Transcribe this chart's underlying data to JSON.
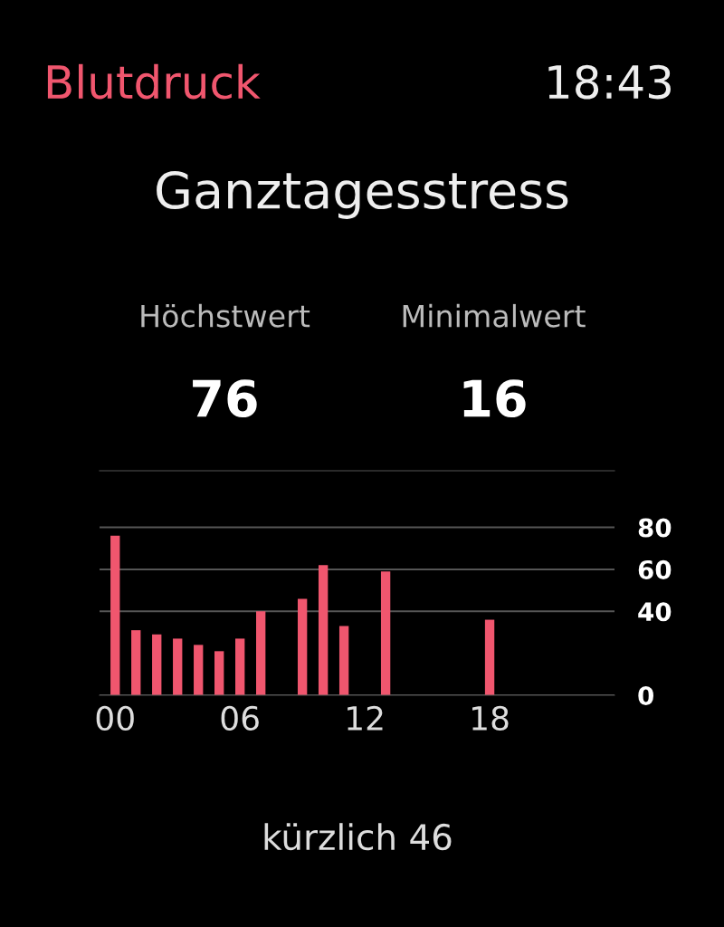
{
  "chart_data": {
    "type": "bar",
    "title": "Ganztagesstress",
    "annotations": [
      "Blutdruck",
      "18:43",
      "Höchstwert",
      "Minimalwert",
      "76",
      "16",
      "kürzlich 46"
    ],
    "x": [
      0,
      1,
      2,
      3,
      4,
      5,
      6,
      7,
      9,
      10,
      11,
      13,
      18
    ],
    "values": [
      76,
      31,
      29,
      27,
      24,
      21,
      27,
      40,
      46,
      62,
      33,
      59,
      36
    ],
    "color": "#f0566e",
    "xlim": [
      -0.75,
      24
    ],
    "xticks": [
      {
        "value": 0,
        "label": "00"
      },
      {
        "value": 6,
        "label": "06"
      },
      {
        "value": 12,
        "label": "12"
      },
      {
        "value": 18,
        "label": "18"
      }
    ],
    "ylim": [
      0,
      107
    ],
    "yticks": [
      0,
      40,
      60,
      80
    ],
    "grid": "y"
  }
}
